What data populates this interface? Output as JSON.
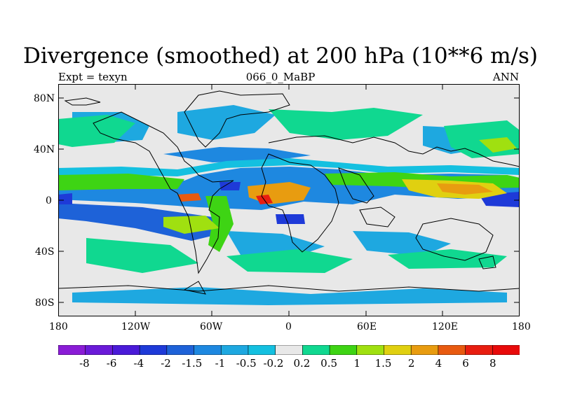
{
  "title": "Divergence (smoothed) at 200 hPa (10**6 m/s)",
  "left_label": "Expt = texyn",
  "center_label": "066_0_MaBP",
  "right_label": "ANN",
  "y_ticks": [
    "80N",
    "40N",
    "0",
    "40S",
    "80S"
  ],
  "x_ticks": [
    "180",
    "120W",
    "60W",
    "0",
    "60E",
    "120E",
    "180"
  ],
  "colorbar": {
    "labels": [
      "-8",
      "-6",
      "-4",
      "-2",
      "-1.5",
      "-1",
      "-0.5",
      "-0.2",
      "0.2",
      "0.5",
      "1",
      "1.5",
      "2",
      "4",
      "6",
      "8"
    ],
    "colors": [
      "#8a1cd6",
      "#6a1ad8",
      "#4a1ad8",
      "#1e3ad8",
      "#1e62d8",
      "#1e88e0",
      "#1ea8e0",
      "#14c0e0",
      "#e8e8e8",
      "#10d890",
      "#3ed414",
      "#a0e010",
      "#e0d010",
      "#e89c10",
      "#e85a10",
      "#e81e10",
      "#e80a0a"
    ]
  },
  "map": {
    "projection": "cylindrical-equidistant",
    "lon_range": [
      -180,
      180
    ],
    "lat_range": [
      -90,
      90
    ],
    "background_value": "between -0.2 and 0.2"
  }
}
